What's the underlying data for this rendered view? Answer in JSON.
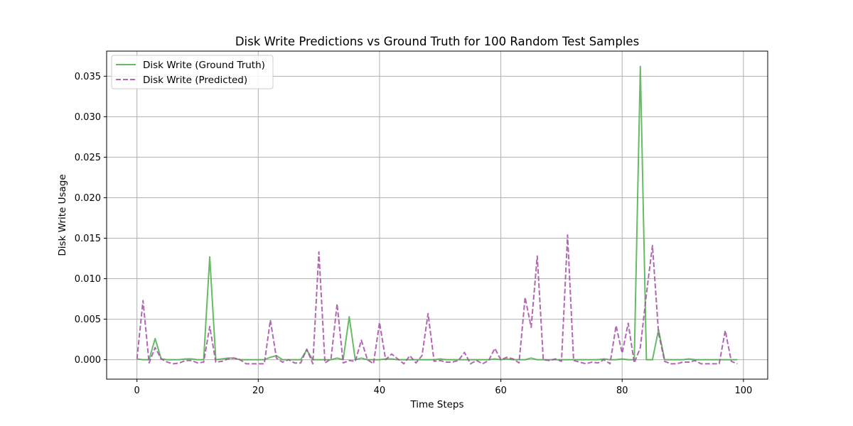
{
  "chart_data": {
    "type": "line",
    "title": "Disk Write Predictions vs Ground Truth for 100 Random Test Samples",
    "xlabel": "Time Steps",
    "ylabel": "Disk Write Usage",
    "xlim": [
      -5,
      104
    ],
    "ylim": [
      -0.0024,
      0.0381
    ],
    "xticks": [
      0,
      20,
      40,
      60,
      80,
      100
    ],
    "yticks": [
      0.0,
      0.005,
      0.01,
      0.015,
      0.02,
      0.025,
      0.03,
      0.035
    ],
    "ytick_labels": [
      "0.000",
      "0.005",
      "0.010",
      "0.015",
      "0.020",
      "0.025",
      "0.030",
      "0.035"
    ],
    "grid": true,
    "legend_position": "top-left",
    "series": [
      {
        "name": "Disk Write (Ground Truth)",
        "color": "#4daf4a",
        "style": "solid",
        "values": [
          0.0001,
          0.0,
          0.0,
          0.0026,
          0.0001,
          0.0,
          0.0,
          0.0,
          0.0001,
          0.0001,
          0.0,
          0.0,
          0.0127,
          0.0,
          0.0001,
          0.0002,
          0.0002,
          0.0,
          0.0,
          0.0,
          0.0,
          0.0,
          0.0003,
          0.0005,
          0.0,
          0.0,
          0.0,
          0.0,
          0.0012,
          0.0,
          0.0,
          0.0,
          0.0,
          0.0002,
          0.0,
          0.0053,
          0.0,
          0.0002,
          0.0,
          0.0,
          0.0,
          0.0001,
          0.0001,
          0.0,
          0.0,
          0.0,
          0.0,
          0.0,
          0.0,
          0.0,
          0.0001,
          0.0,
          0.0,
          0.0,
          0.0,
          0.0,
          0.0,
          0.0,
          0.0,
          0.0001,
          0.0,
          0.0001,
          0.0,
          0.0,
          0.0,
          0.0002,
          0.0,
          0.0,
          0.0,
          0.0,
          0.0,
          0.0,
          0.0,
          0.0,
          0.0,
          0.0,
          0.0,
          0.0001,
          0.0,
          0.0,
          0.0001,
          0.0,
          0.0,
          0.0362,
          0.0,
          0.0,
          0.0037,
          0.0,
          0.0,
          0.0,
          0.0,
          0.0001,
          0.0,
          0.0,
          0.0,
          0.0,
          0.0,
          0.0,
          0.0,
          0.0
        ]
      },
      {
        "name": "Disk Write (Predicted)",
        "color": "#a64ca6",
        "style": "dashed",
        "values": [
          0.0001,
          0.0073,
          -0.0004,
          0.0015,
          0.0001,
          -0.0003,
          -0.0005,
          -0.0004,
          -0.0001,
          -0.0001,
          -0.0004,
          -0.0003,
          0.0041,
          -0.0003,
          -0.0002,
          0.0001,
          0.0002,
          0.0,
          -0.0005,
          -0.0005,
          -0.0005,
          -0.0005,
          0.0049,
          0.0002,
          -0.0003,
          0.0,
          -0.0004,
          -0.0004,
          0.0013,
          -0.0005,
          0.0133,
          -0.0004,
          0.0001,
          0.0069,
          -0.0004,
          -0.0001,
          -0.0002,
          0.0024,
          0.0,
          -0.0005,
          0.0046,
          0.0,
          0.0007,
          0.0001,
          -0.0005,
          0.0005,
          -0.0004,
          0.0005,
          0.0057,
          -0.0002,
          -0.0001,
          -0.0003,
          -0.0003,
          -0.0001,
          0.0009,
          -0.0005,
          -0.0001,
          -0.0005,
          -0.0001,
          0.0014,
          0.0,
          0.0003,
          0.0001,
          -0.0004,
          0.0077,
          0.004,
          0.0128,
          0.0,
          -0.0001,
          0.0001,
          -0.0002,
          0.0154,
          -0.0001,
          -0.0003,
          -0.0005,
          -0.0003,
          -0.0004,
          0.0,
          -0.0005,
          0.0042,
          0.0008,
          0.0045,
          -0.0004,
          0.0015,
          0.0081,
          0.0141,
          0.0033,
          -0.0002,
          -0.0005,
          -0.0005,
          -0.0003,
          -0.0003,
          -0.0001,
          -0.0005,
          -0.0005,
          -0.0005,
          -0.0005,
          0.0036,
          -0.0002,
          -0.0005
        ]
      }
    ]
  }
}
